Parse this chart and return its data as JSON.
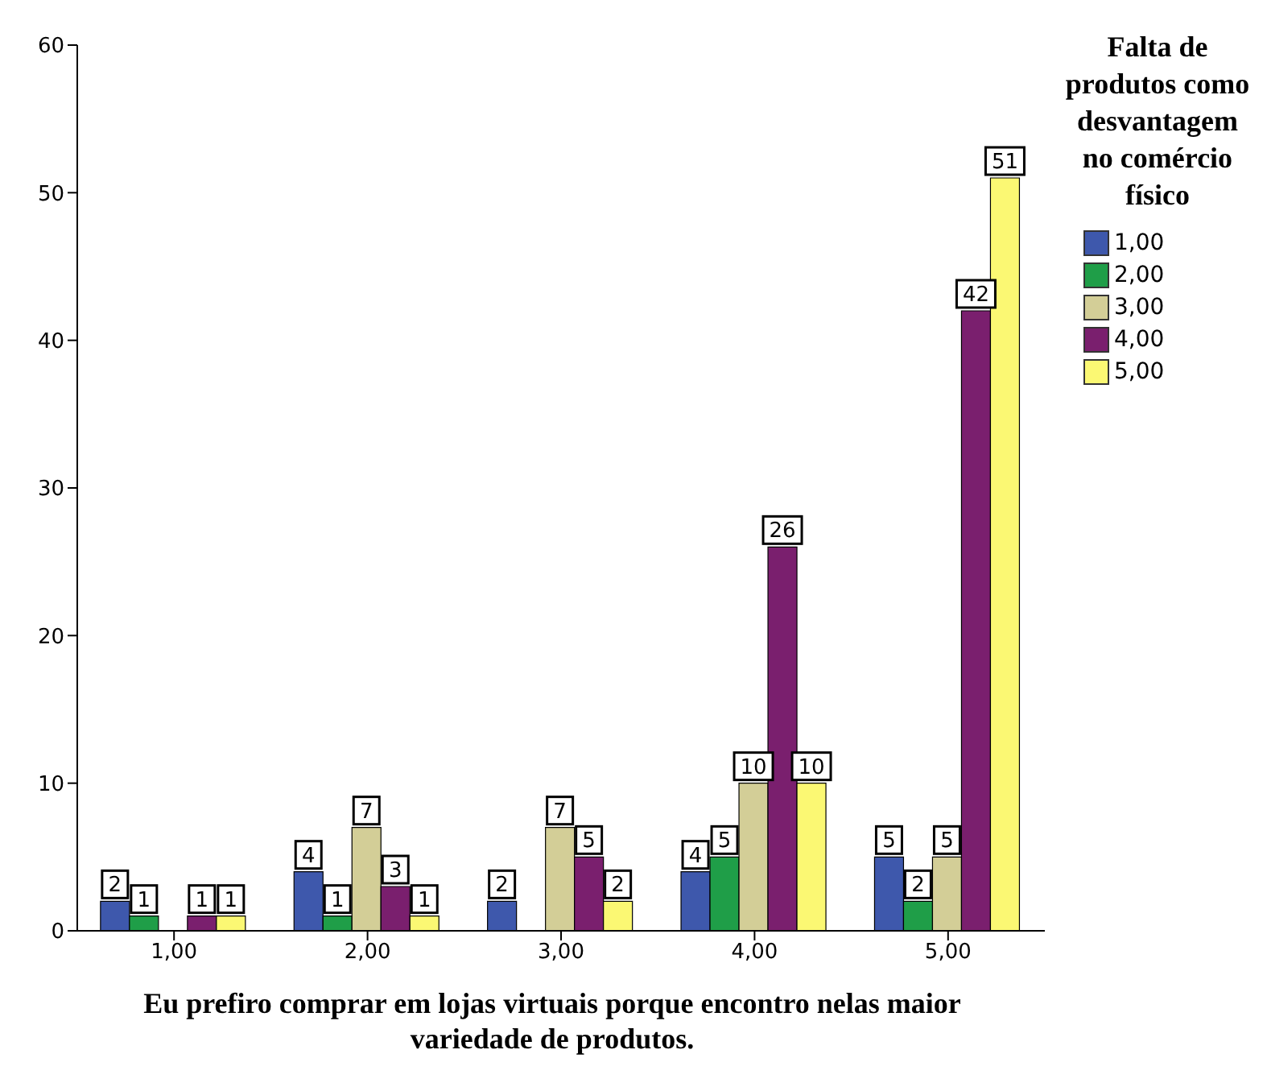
{
  "chart_data": {
    "type": "bar",
    "xlabel": "Eu prefiro comprar em lojas virtuais porque encontro nelas maior variedade de produtos.",
    "legend_title": "Falta de produtos como desvantagem no comércio físico",
    "categories": [
      "1,00",
      "2,00",
      "3,00",
      "4,00",
      "5,00"
    ],
    "series": [
      {
        "name": "1,00",
        "color": "#3e58ac",
        "values": [
          2,
          4,
          2,
          4,
          5
        ]
      },
      {
        "name": "2,00",
        "color": "#1f9e48",
        "values": [
          1,
          1,
          null,
          5,
          2
        ]
      },
      {
        "name": "3,00",
        "color": "#d3ce97",
        "values": [
          null,
          7,
          7,
          10,
          5
        ]
      },
      {
        "name": "4,00",
        "color": "#7a1f6e",
        "values": [
          1,
          3,
          5,
          26,
          42
        ]
      },
      {
        "name": "5,00",
        "color": "#fbf873",
        "values": [
          1,
          1,
          2,
          10,
          51
        ]
      }
    ],
    "ylim": [
      0,
      60
    ],
    "yticks": [
      0,
      10,
      20,
      30,
      40,
      50,
      60
    ],
    "grid": false,
    "legend": "right",
    "data_labels": true
  }
}
